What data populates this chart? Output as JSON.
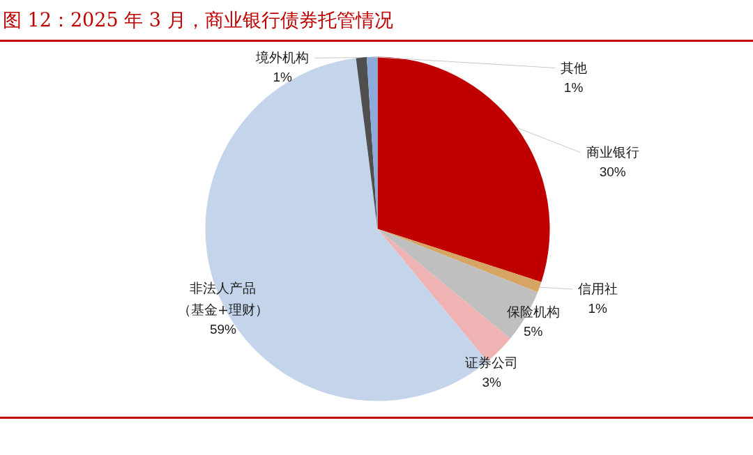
{
  "chart_data": {
    "type": "pie",
    "title": "图 12：2025 年 3 月，商业银行债券托管情况",
    "categories": [
      "商业银行",
      "信用社",
      "保险机构",
      "证券公司",
      "非法人产品（基金+理财）",
      "境外机构",
      "其他"
    ],
    "values": [
      30,
      1,
      5,
      3,
      59,
      1,
      1
    ],
    "colors": [
      "#c00000",
      "#d6a564",
      "#bfbfbf",
      "#efb3b3",
      "#c4d5eb",
      "#4f4f4f",
      "#8eaadb"
    ],
    "value_labels": [
      "30%",
      "1%",
      "5%",
      "3%",
      "59%",
      "1%",
      "1%"
    ]
  }
}
